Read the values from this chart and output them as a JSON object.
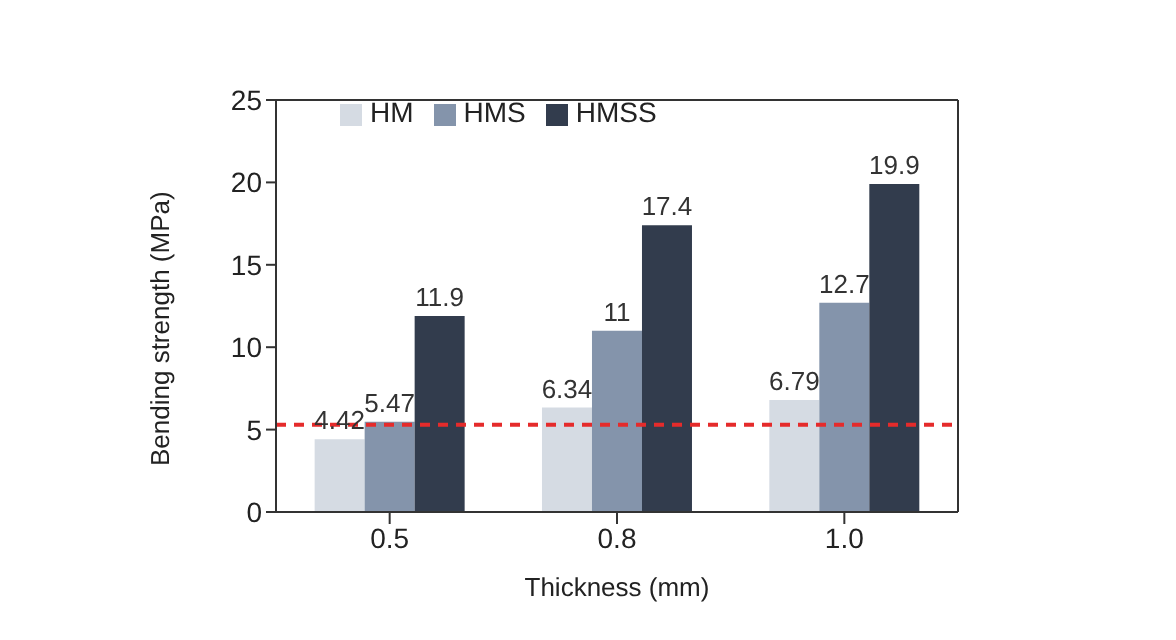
{
  "chart_data": {
    "type": "bar",
    "xlabel": "Thickness (mm)",
    "ylabel": "Bending strength (MPa)",
    "categories": [
      "0.5",
      "0.8",
      "1.0"
    ],
    "series": [
      {
        "name": "HM",
        "color": "#d5dbe3",
        "values": [
          4.42,
          6.34,
          6.79
        ]
      },
      {
        "name": "HMS",
        "color": "#8494ab",
        "values": [
          5.47,
          11,
          12.7
        ]
      },
      {
        "name": "HMSS",
        "color": "#323c4d",
        "values": [
          11.9,
          17.4,
          19.9
        ]
      }
    ],
    "ylim": [
      0,
      25
    ],
    "yticks": [
      0,
      5,
      10,
      15,
      20,
      25
    ],
    "data_labels": true,
    "legend": "top left",
    "grid": false,
    "ref_lines": [
      {
        "axis": "y",
        "value": 5.3,
        "label": null,
        "color": "#e52b2b",
        "line_style": "dashed"
      }
    ]
  }
}
